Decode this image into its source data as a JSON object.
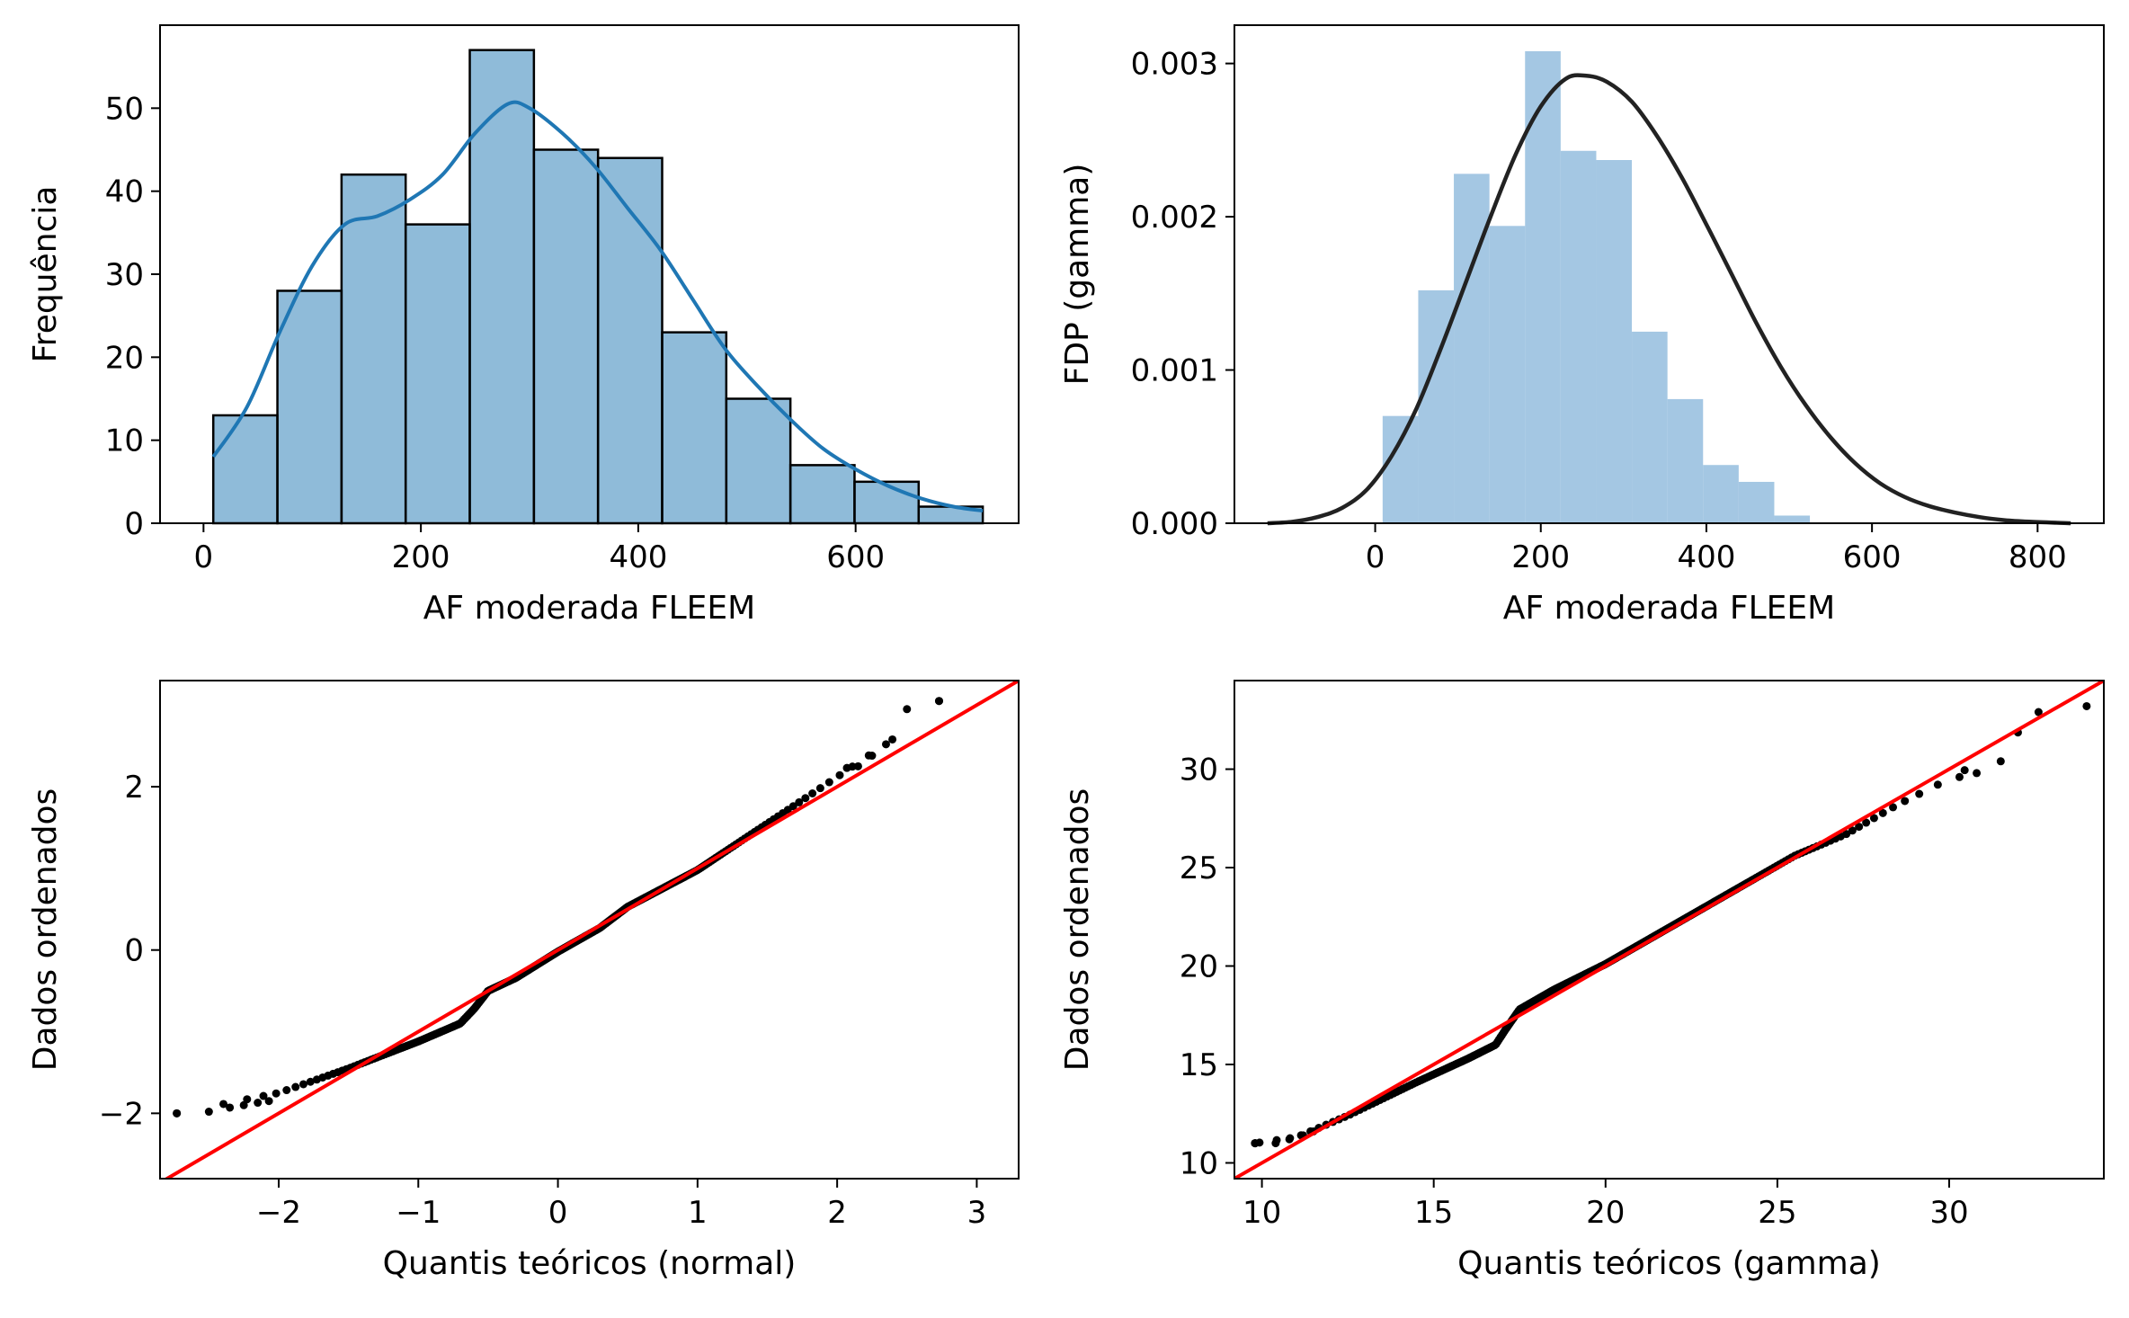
{
  "chart_data": [
    {
      "id": "hist_counts",
      "type": "bar",
      "xlabel": "AF moderada FLEEM",
      "ylabel": "Frequência",
      "xlim": [
        -40,
        750
      ],
      "ylim": [
        0,
        60
      ],
      "xticks": [
        0,
        200,
        400,
        600
      ],
      "yticks": [
        0,
        10,
        20,
        30,
        40,
        50
      ],
      "bin_edges": [
        9,
        68,
        127,
        186,
        245,
        304,
        363,
        422,
        481,
        540,
        599,
        658,
        717
      ],
      "values": [
        13,
        28,
        42,
        36,
        57,
        45,
        44,
        23,
        15,
        7,
        5,
        2
      ],
      "bar_color": "#1f77b4",
      "kde": {
        "color": "#1f77b4",
        "x": [
          9,
          40,
          70,
          100,
          130,
          160,
          190,
          220,
          250,
          280,
          300,
          330,
          360,
          390,
          420,
          450,
          480,
          510,
          540,
          570,
          600,
          630,
          660,
          690,
          717
        ],
        "y": [
          8,
          14,
          23,
          31,
          36,
          37,
          39,
          42,
          47,
          50.5,
          50,
          47,
          43,
          38,
          33,
          27,
          21,
          16.5,
          12.5,
          9,
          6.5,
          4.5,
          3,
          2,
          1.5
        ]
      }
    },
    {
      "id": "hist_density_gamma",
      "type": "bar",
      "xlabel": "AF moderada FLEEM",
      "ylabel": "FDP (gamma)",
      "xlim": [
        -170,
        880
      ],
      "ylim": [
        0,
        0.00325
      ],
      "xticks": [
        0,
        200,
        400,
        600,
        800
      ],
      "yticks": [
        0.0,
        0.001,
        0.002,
        0.003
      ],
      "ytick_labels": [
        "0.000",
        "0.001",
        "0.002",
        "0.003"
      ],
      "bin_edges": [
        9,
        52,
        95,
        138,
        181,
        224,
        267,
        310,
        353,
        396,
        439,
        482,
        525,
        568,
        611,
        654,
        697
      ],
      "values": [
        0.0007,
        0.00152,
        0.00228,
        0.00194,
        0.00308,
        0.00243,
        0.00237,
        0.00125,
        0.00081,
        0.00038,
        0.00027,
        5e-05,
        0.0,
        0.0,
        0.0,
        0.0
      ],
      "bar_color": "#8db9dc",
      "fit_color": "#222222",
      "fit_curve": {
        "x": [
          -130,
          -100,
          -70,
          -40,
          -10,
          20,
          50,
          80,
          110,
          140,
          170,
          200,
          230,
          255,
          280,
          310,
          340,
          370,
          400,
          430,
          460,
          490,
          520,
          550,
          580,
          610,
          640,
          670,
          700,
          730,
          760,
          790,
          840
        ],
        "y": [
          0.0,
          1e-05,
          4e-05,
          0.0001,
          0.00022,
          0.00044,
          0.00075,
          0.00115,
          0.00158,
          0.00201,
          0.00241,
          0.00272,
          0.0029,
          0.00292,
          0.00288,
          0.00275,
          0.00253,
          0.00226,
          0.00195,
          0.00163,
          0.00131,
          0.00102,
          0.00077,
          0.00056,
          0.00039,
          0.00026,
          0.00017,
          0.00011,
          7e-05,
          4e-05,
          2e-05,
          1e-05,
          0.0
        ]
      }
    },
    {
      "id": "qq_normal",
      "type": "scatter",
      "xlabel": "Quantis teóricos (normal)",
      "ylabel": "Dados ordenados",
      "xlim": [
        -2.85,
        3.3
      ],
      "ylim": [
        -2.8,
        3.3
      ],
      "xticks": [
        -2,
        -1,
        0,
        1,
        2,
        3
      ],
      "yticks": [
        -2,
        0,
        2
      ],
      "xtick_labels": [
        "−2",
        "−1",
        "0",
        "1",
        "2",
        "3"
      ],
      "ytick_labels": [
        "−2",
        "0",
        "2"
      ],
      "point_color": "#000000",
      "line_color": "#ff0000",
      "reference_line": {
        "slope": 1.0,
        "intercept": 0.0
      },
      "curve": {
        "x": [
          -2.73,
          -2.0,
          -1.5,
          -1.0,
          -0.7,
          -0.6,
          -0.5,
          -0.3,
          0.0,
          0.3,
          0.5,
          1.0,
          1.5,
          2.0,
          2.5,
          2.73
        ],
        "y": [
          -2.0,
          -1.75,
          -1.45,
          -1.12,
          -0.9,
          -0.72,
          -0.5,
          -0.34,
          -0.02,
          0.27,
          0.53,
          0.98,
          1.55,
          2.12,
          2.7,
          3.05
        ]
      },
      "n_points": 300,
      "tail_points": [
        {
          "x": -2.73,
          "y": -2.0
        },
        {
          "x": -2.5,
          "y": -1.98
        },
        {
          "x": -2.35,
          "y": -1.93
        },
        {
          "x": -2.25,
          "y": -1.9
        },
        {
          "x": -2.15,
          "y": -1.87
        },
        {
          "x": -2.07,
          "y": -1.85
        },
        {
          "x": 2.07,
          "y": 2.23
        },
        {
          "x": 2.15,
          "y": 2.25
        },
        {
          "x": 2.25,
          "y": 2.38
        },
        {
          "x": 2.35,
          "y": 2.52
        },
        {
          "x": 2.5,
          "y": 2.95
        },
        {
          "x": 2.73,
          "y": 3.05
        }
      ]
    },
    {
      "id": "qq_gamma",
      "type": "scatter",
      "xlabel": "Quantis teóricos (gamma)",
      "ylabel": "Dados ordenados",
      "xlim": [
        9.2,
        34.5
      ],
      "ylim": [
        9.2,
        34.5
      ],
      "xticks": [
        10,
        15,
        20,
        25,
        30
      ],
      "yticks": [
        10,
        15,
        20,
        25,
        30
      ],
      "point_color": "#000000",
      "line_color": "#ff0000",
      "reference_line": {
        "slope": 1.0,
        "intercept": 0.0
      },
      "curve": {
        "x": [
          9.8,
          11.0,
          12.5,
          14.5,
          16.0,
          16.8,
          17.1,
          17.5,
          18.5,
          20.0,
          22.0,
          24.0,
          25.5,
          27.0,
          28.5,
          30.0,
          31.5,
          32.6,
          34.0
        ],
        "y": [
          11.0,
          11.3,
          12.4,
          14.1,
          15.3,
          16.0,
          16.8,
          17.8,
          18.8,
          20.1,
          22.1,
          24.1,
          25.6,
          26.7,
          28.2,
          29.5,
          31.0,
          32.9,
          33.2
        ]
      },
      "n_points": 300,
      "tail_points": [
        {
          "x": 9.8,
          "y": 11.0
        },
        {
          "x": 10.4,
          "y": 11.0
        },
        {
          "x": 10.8,
          "y": 11.2
        },
        {
          "x": 11.2,
          "y": 11.4
        },
        {
          "x": 11.5,
          "y": 11.6
        },
        {
          "x": 30.3,
          "y": 29.6
        },
        {
          "x": 30.8,
          "y": 29.8
        },
        {
          "x": 31.5,
          "y": 30.4
        },
        {
          "x": 32.6,
          "y": 32.9
        },
        {
          "x": 34.0,
          "y": 33.2
        }
      ]
    }
  ]
}
